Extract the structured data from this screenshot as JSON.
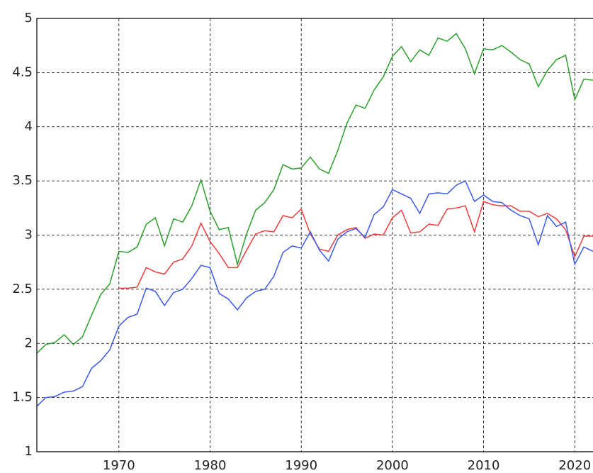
{
  "chart_data": {
    "type": "line",
    "x": [
      1961,
      1962,
      1963,
      1964,
      1965,
      1966,
      1967,
      1968,
      1969,
      1970,
      1971,
      1972,
      1973,
      1974,
      1975,
      1976,
      1977,
      1978,
      1979,
      1980,
      1981,
      1982,
      1983,
      1984,
      1985,
      1986,
      1987,
      1988,
      1989,
      1990,
      1991,
      1992,
      1993,
      1994,
      1995,
      1996,
      1997,
      1998,
      1999,
      2000,
      2001,
      2002,
      2003,
      2004,
      2005,
      2006,
      2007,
      2008,
      2009,
      2010,
      2011,
      2012,
      2013,
      2014,
      2015,
      2016,
      2017,
      2018,
      2019,
      2020,
      2021,
      2022
    ],
    "series": [
      {
        "color": "#2ca02c",
        "values": [
          1.91,
          1.99,
          2.01,
          2.08,
          1.99,
          2.06,
          2.26,
          2.45,
          2.55,
          2.85,
          2.84,
          2.89,
          3.1,
          3.16,
          2.9,
          3.15,
          3.12,
          3.27,
          3.51,
          3.22,
          3.05,
          3.07,
          2.73,
          3.01,
          3.23,
          3.3,
          3.42,
          3.65,
          3.61,
          3.62,
          3.72,
          3.61,
          3.57,
          3.78,
          4.03,
          4.2,
          4.17,
          4.34,
          4.46,
          4.65,
          4.74,
          4.6,
          4.71,
          4.66,
          4.82,
          4.79,
          4.86,
          4.72,
          4.49,
          4.72,
          4.71,
          4.75,
          4.69,
          4.62,
          4.58,
          4.37,
          4.52,
          4.62,
          4.66,
          4.25,
          4.44,
          4.43
        ]
      },
      {
        "color": "#f03c3c",
        "values": [
          null,
          null,
          null,
          null,
          null,
          null,
          null,
          null,
          null,
          2.51,
          2.51,
          2.52,
          2.7,
          2.66,
          2.64,
          2.75,
          2.78,
          2.9,
          3.11,
          2.94,
          2.83,
          2.7,
          2.7,
          2.86,
          3.01,
          3.04,
          3.03,
          3.18,
          3.16,
          3.24,
          3.01,
          2.87,
          2.85,
          3.0,
          3.05,
          3.07,
          2.97,
          3.01,
          3.0,
          3.16,
          3.23,
          3.02,
          3.03,
          3.1,
          3.09,
          3.24,
          3.25,
          3.27,
          3.03,
          3.31,
          3.28,
          3.27,
          3.27,
          3.22,
          3.22,
          3.17,
          3.2,
          3.15,
          3.05,
          2.8,
          2.99,
          2.99
        ]
      },
      {
        "color": "#3c5af0",
        "values": [
          1.42,
          1.5,
          1.51,
          1.55,
          1.56,
          1.6,
          1.77,
          1.84,
          1.94,
          2.16,
          2.24,
          2.27,
          2.51,
          2.48,
          2.35,
          2.47,
          2.5,
          2.6,
          2.72,
          2.7,
          2.46,
          2.41,
          2.31,
          2.42,
          2.48,
          2.5,
          2.62,
          2.84,
          2.9,
          2.88,
          3.03,
          2.86,
          2.76,
          2.96,
          3.03,
          3.06,
          2.98,
          3.19,
          3.26,
          3.42,
          3.38,
          3.34,
          3.2,
          3.38,
          3.39,
          3.38,
          3.46,
          3.5,
          3.31,
          3.37,
          3.31,
          3.3,
          3.23,
          3.18,
          3.15,
          2.91,
          3.18,
          3.08,
          3.12,
          2.73,
          2.89,
          2.85
        ]
      }
    ],
    "xlim": [
      1961,
      2022
    ],
    "xticks": [
      1970,
      1980,
      1990,
      2000,
      2010,
      2020
    ],
    "ylim": [
      1,
      5
    ],
    "yticks": [
      1,
      1.5,
      2,
      2.5,
      3,
      3.5,
      4,
      4.5,
      5
    ],
    "grid": true
  }
}
